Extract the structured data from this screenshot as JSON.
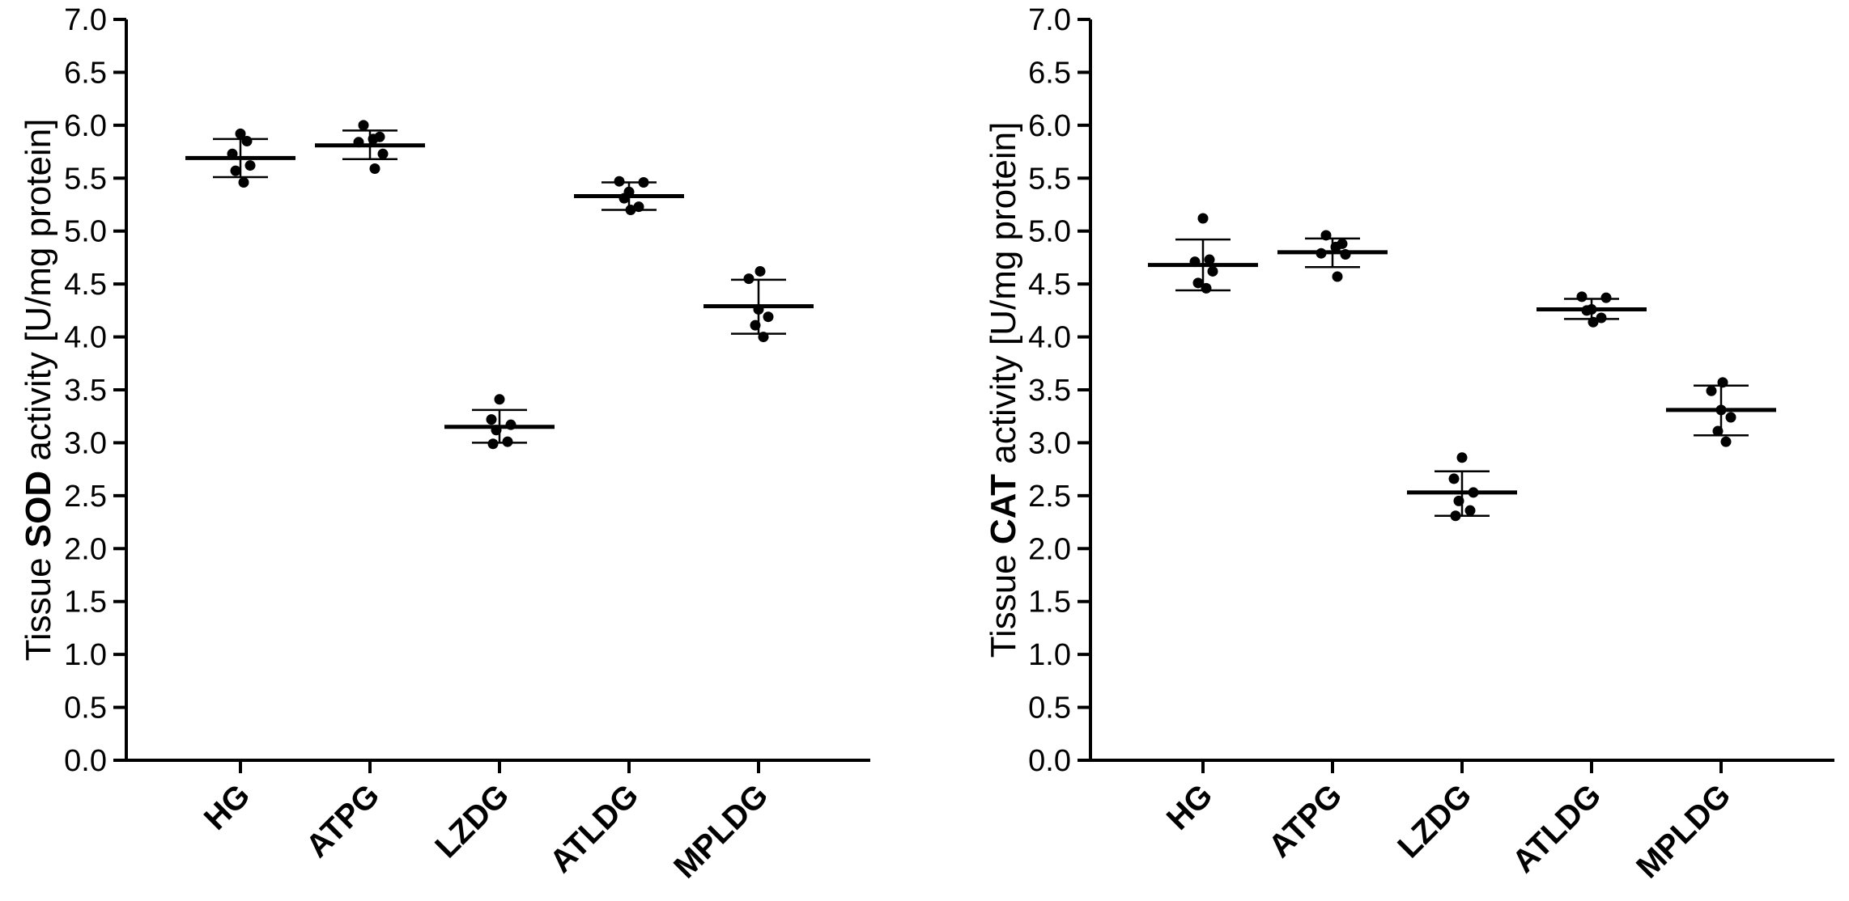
{
  "chart_data": [
    {
      "type": "scatter",
      "ylabel_prefix": "Tissue ",
      "ylabel_bold": "SOD",
      "ylabel_suffix": " activity [U/mg protein]",
      "ylim": [
        0,
        7.0
      ],
      "yticks": [
        "0.0",
        "0.5",
        "1.0",
        "1.5",
        "2.0",
        "2.5",
        "3.0",
        "3.5",
        "4.0",
        "4.5",
        "5.0",
        "5.5",
        "6.0",
        "6.5",
        "7.0"
      ],
      "categories": [
        "HG",
        "ATPG",
        "LZDG",
        "ATLDG",
        "MPLDG"
      ],
      "groups": [
        {
          "name": "HG",
          "mean": 5.69,
          "sd_low": 5.51,
          "sd_high": 5.87,
          "points": [
            5.92,
            5.85,
            5.73,
            5.62,
            5.57,
            5.46
          ]
        },
        {
          "name": "ATPG",
          "mean": 5.81,
          "sd_low": 5.68,
          "sd_high": 5.95,
          "points": [
            6.0,
            5.89,
            5.87,
            5.84,
            5.73,
            5.59
          ]
        },
        {
          "name": "LZDG",
          "mean": 3.15,
          "sd_low": 3.0,
          "sd_high": 3.31,
          "points": [
            3.41,
            3.22,
            3.17,
            3.12,
            3.01,
            2.99
          ]
        },
        {
          "name": "ATLDG",
          "mean": 5.33,
          "sd_low": 5.2,
          "sd_high": 5.46,
          "points": [
            5.47,
            5.46,
            5.37,
            5.31,
            5.23,
            5.2
          ]
        },
        {
          "name": "MPLDG",
          "mean": 4.29,
          "sd_low": 4.03,
          "sd_high": 4.54,
          "points": [
            4.62,
            4.55,
            4.26,
            4.19,
            4.11,
            4.0
          ]
        }
      ]
    },
    {
      "type": "scatter",
      "ylabel_prefix": "Tissue ",
      "ylabel_bold": "CAT",
      "ylabel_suffix": " activity [U/mg protein]",
      "ylim": [
        0,
        7.0
      ],
      "yticks": [
        "0.0",
        "0.5",
        "1.0",
        "1.5",
        "2.0",
        "2.5",
        "3.0",
        "3.5",
        "4.0",
        "4.5",
        "5.0",
        "5.5",
        "6.0",
        "6.5",
        "7.0"
      ],
      "categories": [
        "HG",
        "ATPG",
        "LZDG",
        "ATLDG",
        "MPLDG"
      ],
      "groups": [
        {
          "name": "HG",
          "mean": 4.68,
          "sd_low": 4.44,
          "sd_high": 4.92,
          "points": [
            5.12,
            4.73,
            4.71,
            4.62,
            4.51,
            4.46
          ]
        },
        {
          "name": "ATPG",
          "mean": 4.8,
          "sd_low": 4.66,
          "sd_high": 4.93,
          "points": [
            4.96,
            4.88,
            4.85,
            4.79,
            4.78,
            4.57
          ]
        },
        {
          "name": "LZDG",
          "mean": 2.53,
          "sd_low": 2.31,
          "sd_high": 2.73,
          "points": [
            2.86,
            2.66,
            2.53,
            2.45,
            2.36,
            2.31
          ]
        },
        {
          "name": "ATLDG",
          "mean": 4.26,
          "sd_low": 4.17,
          "sd_high": 4.36,
          "points": [
            4.38,
            4.37,
            4.26,
            4.25,
            4.18,
            4.14
          ]
        },
        {
          "name": "MPLDG",
          "mean": 3.31,
          "sd_low": 3.07,
          "sd_high": 3.54,
          "points": [
            3.57,
            3.49,
            3.31,
            3.24,
            3.11,
            3.01
          ]
        }
      ]
    }
  ]
}
